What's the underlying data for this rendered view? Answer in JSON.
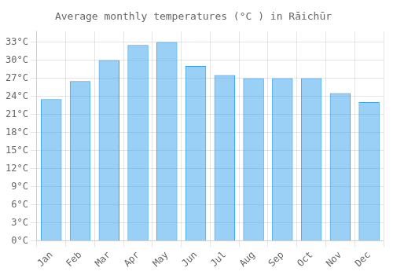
{
  "chart_data": {
    "type": "bar",
    "title": "Average monthly temperatures (°C ) in Rāichūr",
    "categories": [
      "Jan",
      "Feb",
      "Mar",
      "Apr",
      "May",
      "Jun",
      "Jul",
      "Aug",
      "Sep",
      "Oct",
      "Nov",
      "Dec"
    ],
    "values": [
      23.5,
      26.5,
      30.0,
      32.5,
      33.0,
      29.0,
      27.5,
      27.0,
      27.0,
      27.0,
      24.5,
      23.0
    ],
    "ylim": [
      0,
      34.8
    ],
    "yticks": [
      {
        "value": 0,
        "label": "0°C"
      },
      {
        "value": 3,
        "label": "3°C"
      },
      {
        "value": 6,
        "label": "6°C"
      },
      {
        "value": 9,
        "label": "9°C"
      },
      {
        "value": 12,
        "label": "12°C"
      },
      {
        "value": 15,
        "label": "15°C"
      },
      {
        "value": 18,
        "label": "18°C"
      },
      {
        "value": 21,
        "label": "21°C"
      },
      {
        "value": 24,
        "label": "24°C"
      },
      {
        "value": 27,
        "label": "27°C"
      },
      {
        "value": 30,
        "label": "30°C"
      },
      {
        "value": 33,
        "label": "33°C"
      }
    ],
    "grid": true
  }
}
